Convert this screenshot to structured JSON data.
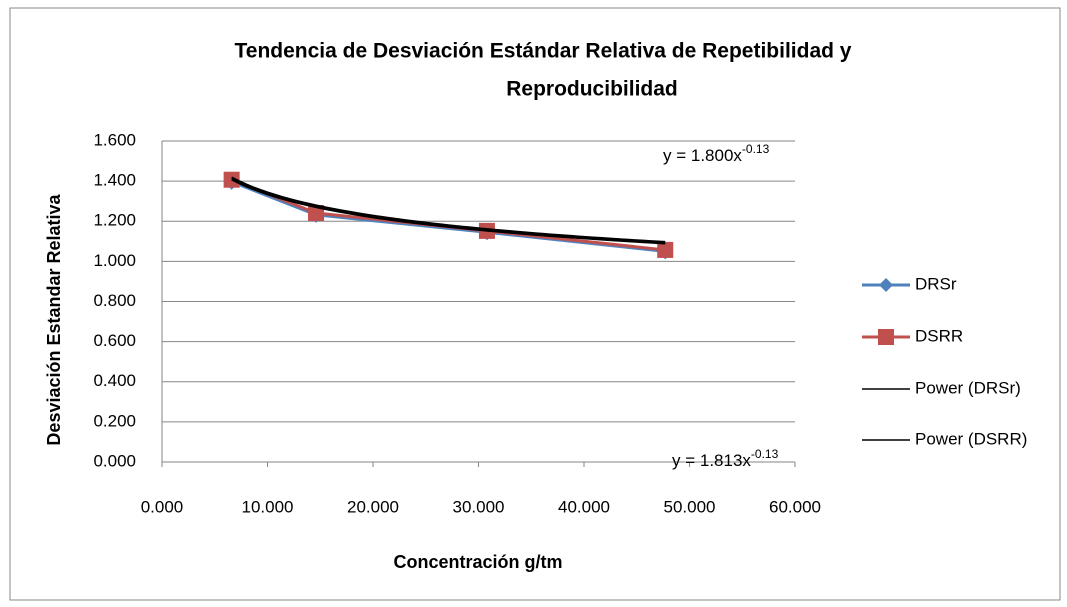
{
  "chart_data": {
    "type": "scatter",
    "title": [
      "Tendencia de Desviación Estándar Relativa de Repetibilidad y",
      "Reproducibilidad"
    ],
    "x_label": "Concentración g/tm",
    "y_label": "Desviación Estandar Relativa",
    "xlim": [
      0,
      60
    ],
    "xticks": [
      {
        "value": 0,
        "label": "0.000"
      },
      {
        "value": 10,
        "label": "10.000"
      },
      {
        "value": 20,
        "label": "20.000"
      },
      {
        "value": 30,
        "label": "30.000"
      },
      {
        "value": 40,
        "label": "40.000"
      },
      {
        "value": 50,
        "label": "50.000"
      },
      {
        "value": 60,
        "label": "60.000"
      }
    ],
    "ylim": [
      0,
      1.6
    ],
    "yticks": [
      {
        "value": 0,
        "label": "0.000"
      },
      {
        "value": 0.2,
        "label": "0.200"
      },
      {
        "value": 0.4,
        "label": "0.400"
      },
      {
        "value": 0.6,
        "label": "0.600"
      },
      {
        "value": 0.8,
        "label": "0.800"
      },
      {
        "value": 1.0,
        "label": "1.000"
      },
      {
        "value": 1.2,
        "label": "1.200"
      },
      {
        "value": 1.4,
        "label": "1.400"
      },
      {
        "value": 1.6,
        "label": "1.600"
      }
    ],
    "grid": true,
    "legend": "right",
    "series": [
      {
        "name": "DRSr",
        "color": "#4f81bd",
        "marker": "diamond",
        "x": [
          6.6,
          14.6,
          30.8,
          47.7
        ],
        "values": [
          1.397,
          1.232,
          1.145,
          1.05
        ]
      },
      {
        "name": "DSRR",
        "color": "#c0504d",
        "marker": "square",
        "x": [
          6.6,
          14.6,
          30.8,
          47.7
        ],
        "values": [
          1.407,
          1.241,
          1.152,
          1.057
        ]
      }
    ],
    "trendlines": [
      {
        "name": "Power (DRSr)",
        "color": "#000000",
        "a": 1.8,
        "b": -0.13,
        "label": [
          "y = 1.800x",
          "-0.13"
        ]
      },
      {
        "name": "Power (DSRR)",
        "color": "#000000",
        "a": 1.813,
        "b": -0.13,
        "label": [
          "y = 1.813x",
          "-0.13"
        ]
      }
    ]
  }
}
